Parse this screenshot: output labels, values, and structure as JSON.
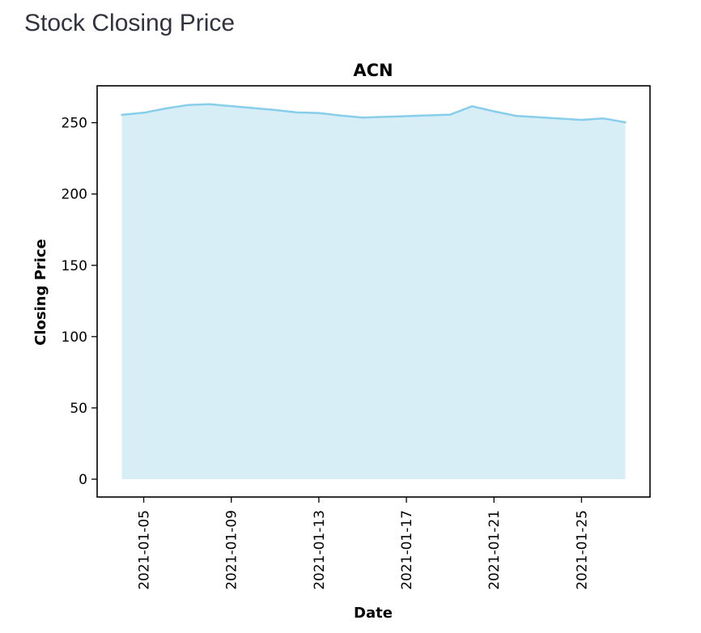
{
  "page": {
    "header": "Stock Closing Price"
  },
  "chart_data": {
    "type": "area",
    "title": "ACN",
    "xlabel": "Date",
    "ylabel": "Closing Price",
    "ylim": [
      0,
      263
    ],
    "yticks": [
      0,
      50,
      100,
      150,
      200,
      250
    ],
    "xticks": [
      "2021-01-05",
      "2021-01-09",
      "2021-01-13",
      "2021-01-17",
      "2021-01-21",
      "2021-01-25"
    ],
    "x": [
      "2021-01-04",
      "2021-01-05",
      "2021-01-06",
      "2021-01-07",
      "2021-01-08",
      "2021-01-11",
      "2021-01-12",
      "2021-01-13",
      "2021-01-14",
      "2021-01-15",
      "2021-01-19",
      "2021-01-20",
      "2021-01-21",
      "2021-01-22",
      "2021-01-25",
      "2021-01-26",
      "2021-01-27"
    ],
    "series": [
      {
        "values": [
          255.5,
          257.0,
          260.0,
          262.4,
          263.0,
          258.9,
          257.2,
          256.8,
          255.0,
          253.6,
          255.7,
          261.5,
          258.0,
          254.8,
          252.0,
          253.0,
          250.3
        ]
      }
    ],
    "colors": {
      "line": "#87ceeb",
      "fill": "#d7eef7"
    },
    "grid": false
  }
}
